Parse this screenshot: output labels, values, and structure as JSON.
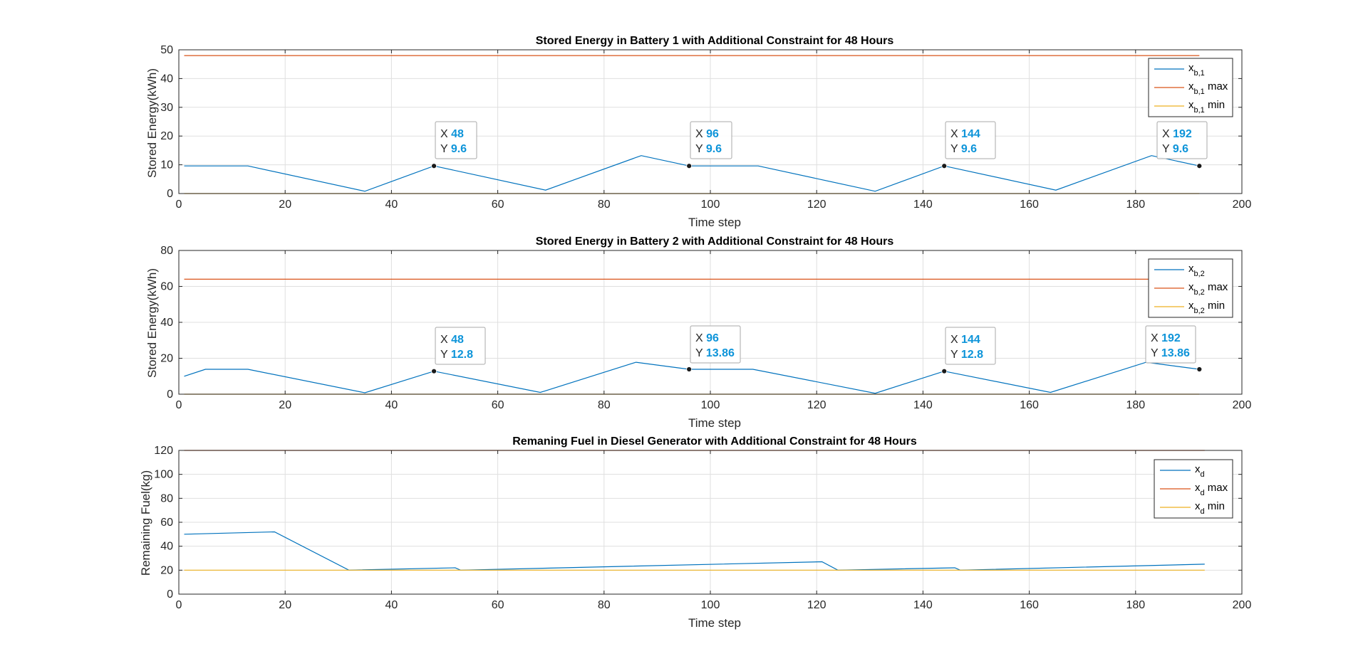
{
  "chart_data": [
    {
      "type": "line",
      "title": "Stored Energy in Battery 1 with Additional Constraint for 48 Hours",
      "xlabel": "Time step",
      "ylabel": "Stored Energy(kWh)",
      "xlim": [
        0,
        200
      ],
      "ylim": [
        0,
        50
      ],
      "xticks": [
        0,
        20,
        40,
        60,
        80,
        100,
        120,
        140,
        160,
        180,
        200
      ],
      "yticks": [
        0,
        10,
        20,
        30,
        40,
        50
      ],
      "grid": true,
      "legend_position": "top-right",
      "series": [
        {
          "legend_base": "x",
          "legend_sub": "b,1",
          "legend_suffix": "",
          "color": "#0072BD",
          "x": [
            1,
            13,
            35,
            48,
            69,
            87,
            96,
            109,
            131,
            144,
            165,
            183,
            192
          ],
          "y": [
            9.6,
            9.6,
            0.8,
            9.6,
            1.2,
            13.2,
            9.6,
            9.6,
            0.8,
            9.6,
            1.2,
            13.2,
            9.6
          ]
        },
        {
          "legend_base": "x",
          "legend_sub": "b,1",
          "legend_suffix": " max",
          "color": "#D95319",
          "x": [
            1,
            192
          ],
          "y": [
            48,
            48
          ]
        },
        {
          "legend_base": "x",
          "legend_sub": "b,1",
          "legend_suffix": " min",
          "color": "#EDB120",
          "x": [
            1,
            192
          ],
          "y": [
            0,
            0
          ]
        }
      ],
      "datatips": [
        {
          "x": 48,
          "y": "9.6"
        },
        {
          "x": 96,
          "y": "9.6"
        },
        {
          "x": 144,
          "y": "9.6"
        },
        {
          "x": 192,
          "y": "9.6"
        }
      ]
    },
    {
      "type": "line",
      "title": "Stored Energy in Battery 2 with Additional Constraint for 48 Hours",
      "xlabel": "Time step",
      "ylabel": "Stored Energy(kWh)",
      "xlim": [
        0,
        200
      ],
      "ylim": [
        0,
        80
      ],
      "xticks": [
        0,
        20,
        40,
        60,
        80,
        100,
        120,
        140,
        160,
        180,
        200
      ],
      "yticks": [
        0,
        20,
        40,
        60,
        80
      ],
      "grid": true,
      "legend_position": "top-right",
      "series": [
        {
          "legend_base": "x",
          "legend_sub": "b,2",
          "legend_suffix": "",
          "color": "#0072BD",
          "x": [
            1,
            5,
            13,
            35,
            48,
            68,
            86,
            96,
            108,
            131,
            144,
            164,
            182,
            192
          ],
          "y": [
            10,
            13.86,
            13.86,
            0.8,
            12.8,
            1.0,
            17.8,
            13.86,
            13.86,
            0.5,
            12.8,
            1.0,
            17.8,
            13.86
          ]
        },
        {
          "legend_base": "x",
          "legend_sub": "b,2",
          "legend_suffix": " max",
          "color": "#D95319",
          "x": [
            1,
            192
          ],
          "y": [
            64,
            64
          ]
        },
        {
          "legend_base": "x",
          "legend_sub": "b,2",
          "legend_suffix": " min",
          "color": "#EDB120",
          "x": [
            1,
            192
          ],
          "y": [
            0,
            0
          ]
        }
      ],
      "datatips": [
        {
          "x": 48,
          "y": "12.8"
        },
        {
          "x": 96,
          "y": "13.86"
        },
        {
          "x": 144,
          "y": "12.8"
        },
        {
          "x": 192,
          "y": "13.86"
        }
      ]
    },
    {
      "type": "line",
      "title": "Remaning Fuel in Diesel Generator with Additional Constraint for 48 Hours",
      "xlabel": "Time step",
      "ylabel": "Remaining Fuel(kg)",
      "xlim": [
        0,
        200
      ],
      "ylim": [
        0,
        120
      ],
      "xticks": [
        0,
        20,
        40,
        60,
        80,
        100,
        120,
        140,
        160,
        180,
        200
      ],
      "yticks": [
        0,
        20,
        40,
        60,
        80,
        100,
        120
      ],
      "grid": true,
      "legend_position": "top-right",
      "series": [
        {
          "legend_base": "x",
          "legend_sub": "d",
          "legend_suffix": "",
          "color": "#0072BD",
          "x": [
            1,
            18,
            32,
            52,
            53,
            121,
            124,
            146,
            147,
            193
          ],
          "y": [
            50,
            52,
            20,
            22,
            20,
            27,
            20,
            22,
            20,
            25
          ]
        },
        {
          "legend_base": "x",
          "legend_sub": "d",
          "legend_suffix": " max",
          "color": "#D95319",
          "x": [
            1,
            193
          ],
          "y": [
            120,
            120
          ]
        },
        {
          "legend_base": "x",
          "legend_sub": "d",
          "legend_suffix": " min",
          "color": "#EDB120",
          "x": [
            1,
            193
          ],
          "y": [
            20,
            20
          ]
        }
      ],
      "datatips": []
    }
  ]
}
